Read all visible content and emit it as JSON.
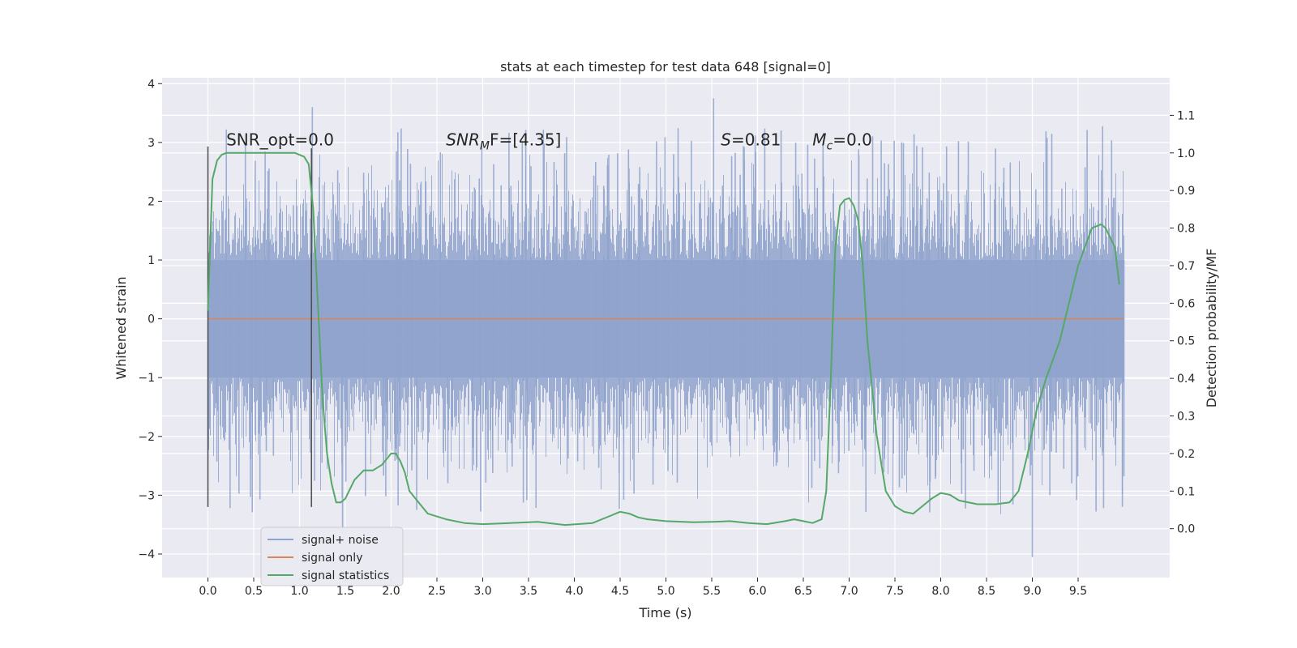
{
  "chart_data": {
    "type": "line",
    "title": "stats at each timestep for test data 648 [signal=0]",
    "xlabel": "Time (s)",
    "ylabel": "Whitened strain",
    "y2label": "Detection probability/MF",
    "xlim": [
      -0.5,
      10.5
    ],
    "ylim": [
      -4.4,
      4.1
    ],
    "y2lim": [
      -0.13,
      1.2
    ],
    "x_ticks": [
      "0.0",
      "0.5",
      "1.0",
      "1.5",
      "2.0",
      "2.5",
      "3.0",
      "3.5",
      "4.0",
      "4.5",
      "5.0",
      "5.5",
      "6.0",
      "6.5",
      "7.0",
      "7.5",
      "8.0",
      "8.5",
      "9.0",
      "9.5"
    ],
    "y_ticks": [
      "4",
      "3",
      "2",
      "1",
      "0",
      "−1",
      "−2",
      "−3",
      "−4"
    ],
    "y2_ticks": [
      "1.1",
      "1.0",
      "0.9",
      "0.8",
      "0.7",
      "0.6",
      "0.5",
      "0.4",
      "0.3",
      "0.2",
      "0.1",
      "0.0"
    ],
    "grid": true,
    "legend_position": "lower-left",
    "annotations": [
      {
        "text": "SNR_opt=0.0",
        "x": 0.2,
        "y": 2.95
      },
      {
        "text": "F=[4.35]",
        "prefix_italic": "SNR",
        "sub": "M",
        "x": 2.6,
        "y": 2.95
      },
      {
        "text": "=0.81",
        "prefix_italic": "S",
        "sub": "",
        "x": 5.6,
        "y": 2.95
      },
      {
        "text": "=0.0",
        "prefix_italic": "M",
        "sub": "c",
        "x": 6.6,
        "y": 2.95
      }
    ],
    "vertical_markers": [
      {
        "x": 0.0,
        "y_range": [
          -3.2,
          2.93
        ]
      },
      {
        "x": 1.13,
        "y_range": [
          -3.2,
          2.9
        ]
      }
    ],
    "series": [
      {
        "name": "signal+ noise",
        "color": "#8fa3cc",
        "kind": "noise",
        "x_range": [
          0.0,
          10.0
        ],
        "core_amplitude": 1.0,
        "typical_peak": 2.5,
        "max_peak": 3.75,
        "min_trough": -4.05
      },
      {
        "name": "signal only",
        "color": "#dd8452",
        "kind": "flat",
        "x": [
          0.0,
          10.0
        ],
        "y": [
          0.0,
          0.0
        ]
      },
      {
        "name": "signal statistics",
        "color": "#55a868",
        "axis": "right",
        "x": [
          0.0,
          0.05,
          0.1,
          0.15,
          0.2,
          0.3,
          0.5,
          0.8,
          0.95,
          1.05,
          1.1,
          1.15,
          1.2,
          1.25,
          1.3,
          1.35,
          1.4,
          1.45,
          1.5,
          1.6,
          1.7,
          1.8,
          1.9,
          2.0,
          2.05,
          2.1,
          2.15,
          2.2,
          2.3,
          2.4,
          2.6,
          2.8,
          3.0,
          3.3,
          3.6,
          3.9,
          4.2,
          4.4,
          4.5,
          4.6,
          4.7,
          4.8,
          5.0,
          5.3,
          5.5,
          5.7,
          5.9,
          6.1,
          6.3,
          6.4,
          6.5,
          6.6,
          6.7,
          6.75,
          6.8,
          6.85,
          6.9,
          6.95,
          7.0,
          7.05,
          7.1,
          7.15,
          7.2,
          7.3,
          7.4,
          7.5,
          7.6,
          7.7,
          7.8,
          7.9,
          8.0,
          8.1,
          8.2,
          8.4,
          8.6,
          8.75,
          8.85,
          8.95,
          9.05,
          9.15,
          9.3,
          9.5,
          9.65,
          9.75,
          9.8,
          9.9,
          9.95
        ],
        "y": [
          0.58,
          0.93,
          0.98,
          0.995,
          1.0,
          1.0,
          1.0,
          1.0,
          1.0,
          0.99,
          0.97,
          0.85,
          0.6,
          0.35,
          0.2,
          0.12,
          0.07,
          0.07,
          0.08,
          0.13,
          0.155,
          0.155,
          0.17,
          0.2,
          0.2,
          0.18,
          0.15,
          0.1,
          0.07,
          0.04,
          0.025,
          0.015,
          0.012,
          0.015,
          0.018,
          0.01,
          0.015,
          0.035,
          0.045,
          0.04,
          0.03,
          0.025,
          0.02,
          0.017,
          0.018,
          0.02,
          0.015,
          0.012,
          0.02,
          0.025,
          0.02,
          0.015,
          0.025,
          0.1,
          0.4,
          0.75,
          0.86,
          0.875,
          0.88,
          0.86,
          0.82,
          0.7,
          0.5,
          0.25,
          0.1,
          0.06,
          0.045,
          0.04,
          0.06,
          0.08,
          0.095,
          0.09,
          0.075,
          0.065,
          0.065,
          0.07,
          0.1,
          0.2,
          0.32,
          0.4,
          0.5,
          0.7,
          0.8,
          0.81,
          0.8,
          0.75,
          0.65
        ]
      }
    ]
  }
}
